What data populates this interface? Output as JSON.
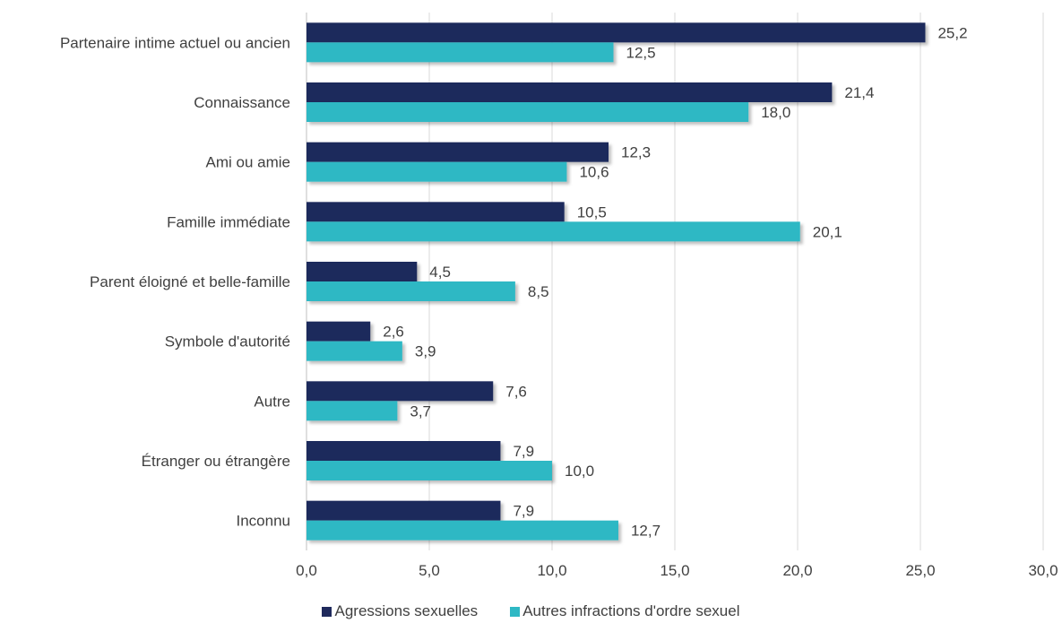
{
  "chart_data": {
    "type": "bar",
    "orientation": "horizontal",
    "categories": [
      "Partenaire intime actuel ou ancien",
      "Connaissance",
      "Ami ou amie",
      "Famille immédiate",
      "Parent éloigné et belle-famille",
      "Symbole d'autorité",
      "Autre",
      "Étranger ou étrangère",
      "Inconnu"
    ],
    "series": [
      {
        "name": "Agressions sexuelles",
        "color": "#1f2a5c",
        "values": [
          25.2,
          21.4,
          12.3,
          10.5,
          4.5,
          2.6,
          7.6,
          7.9,
          7.9
        ],
        "labels": [
          "25,2",
          "21,4",
          "12,3",
          "10,5",
          "4,5",
          "2,6",
          "7,6",
          "7,9",
          "7,9"
        ]
      },
      {
        "name": "Autres infractions d'ordre sexuel",
        "color": "#2fb8c4",
        "values": [
          12.5,
          18.0,
          10.6,
          20.1,
          8.5,
          3.9,
          3.7,
          10.0,
          12.7
        ],
        "labels": [
          "12,5",
          "18,0",
          "10,6",
          "20,1",
          "8,5",
          "3,9",
          "3,7",
          "10,0",
          "12,7"
        ]
      }
    ],
    "xlim": [
      0,
      30
    ],
    "x_ticks": [
      0,
      5,
      10,
      15,
      20,
      25,
      30
    ],
    "x_tick_labels": [
      "0,0",
      "5,0",
      "10,0",
      "15,0",
      "20,0",
      "25,0",
      "30,0"
    ],
    "grid": true,
    "legend_position": "bottom",
    "title": "",
    "xlabel": "",
    "ylabel": ""
  }
}
